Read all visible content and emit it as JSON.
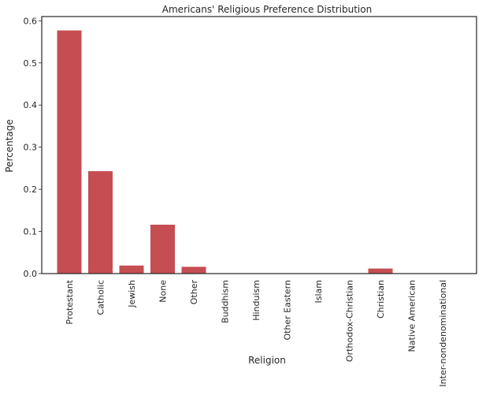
{
  "chart_data": {
    "type": "bar",
    "title": "Americans' Religious Preference Distribution",
    "xlabel": "Religion",
    "ylabel": "Percentage",
    "categories": [
      "Protestant",
      "Catholic",
      "Jewish",
      "None",
      "Other",
      "Buddhism",
      "Hinduism",
      "Other Eastern",
      "Islam",
      "Orthodox-Christian",
      "Christian",
      "Native American",
      "Inter-nondenominational"
    ],
    "values": [
      0.577,
      0.243,
      0.019,
      0.116,
      0.016,
      0.0,
      0.0,
      0.0,
      0.0,
      0.0,
      0.012,
      0.0,
      0.0
    ],
    "ylim": [
      0,
      0.61
    ],
    "yticks": [
      0.0,
      0.1,
      0.2,
      0.3,
      0.4,
      0.5,
      0.6
    ],
    "ytick_labels": [
      "0.0",
      "0.1",
      "0.2",
      "0.3",
      "0.4",
      "0.5",
      "0.6"
    ],
    "grid": false,
    "legend": "none",
    "bar_color": "#c44e52"
  }
}
